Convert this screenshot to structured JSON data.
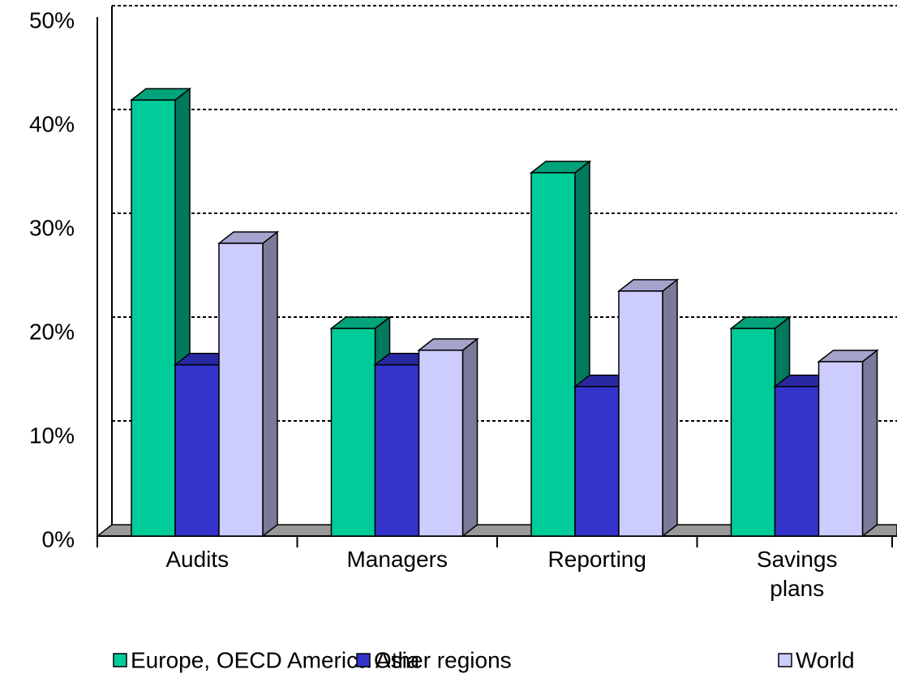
{
  "chart_data": {
    "type": "bar3d",
    "categories": [
      "Audits",
      "Managers",
      "Reporting",
      "Savings plans"
    ],
    "series": [
      {
        "name": "Europe, OECD America Asia",
        "color": "#00cc99",
        "values": [
          42,
          20,
          35,
          20
        ]
      },
      {
        "name": "Other regions",
        "color": "#3333cc",
        "values": [
          16.5,
          16.5,
          14.4,
          14.4
        ]
      },
      {
        "name": "World",
        "color": "#ccccff",
        "values": [
          28.2,
          17.9,
          23.6,
          16.8
        ]
      }
    ],
    "ylim": [
      0,
      50
    ],
    "yticks": [
      {
        "value": 0,
        "label": "0%"
      },
      {
        "value": 10,
        "label": "10%"
      },
      {
        "value": 20,
        "label": "20%"
      },
      {
        "value": 30,
        "label": "30%"
      },
      {
        "value": 40,
        "label": "40%"
      },
      {
        "value": 50,
        "label": "50%"
      }
    ],
    "grid": true
  }
}
